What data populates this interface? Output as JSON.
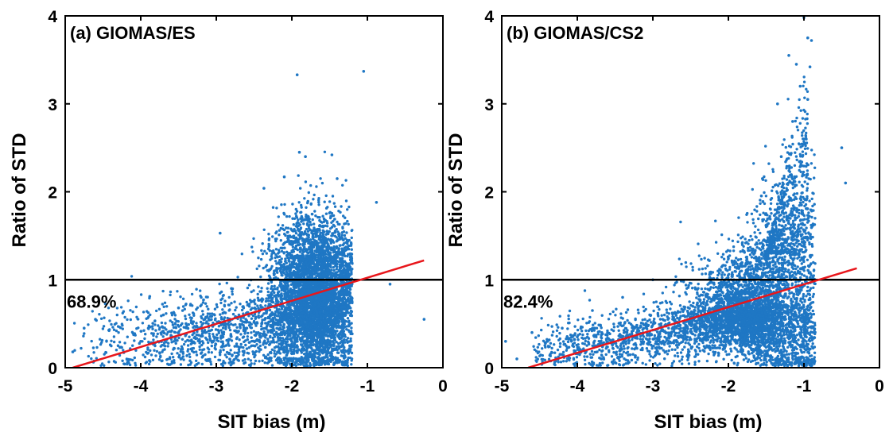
{
  "figure": {
    "colors": {
      "points": "#1f77c4",
      "fit_line": "#e8161b",
      "ref_line": "#000000",
      "axes": "#000000"
    }
  },
  "chart_data": [
    {
      "type": "scatter",
      "title": "(a) GIOMAS/ES",
      "xlabel": "SIT bias (m)",
      "ylabel": "Ratio of STD",
      "xlim": [
        -5,
        0
      ],
      "ylim": [
        0,
        4
      ],
      "xticks": [
        -5,
        -4,
        -3,
        -2,
        -1,
        0
      ],
      "xtick_labels": [
        "-5",
        "-4",
        "-3",
        "-2",
        "-1",
        "0"
      ],
      "yticks": [
        0,
        1,
        2,
        3,
        4
      ],
      "ytick_labels": [
        "0",
        "1",
        "2",
        "3",
        "4"
      ],
      "grid": false,
      "reference_line": {
        "y": 1
      },
      "fit_line": {
        "x": [
          -4.9,
          -0.25
        ],
        "y": [
          0.0,
          1.22
        ]
      },
      "percentage_label": "68.9%",
      "points": [
        [
          -1.93,
          3.33
        ],
        [
          -1.05,
          3.37
        ],
        [
          -1.9,
          2.45
        ],
        [
          -1.82,
          2.4
        ],
        [
          -1.47,
          2.42
        ],
        [
          -2.1,
          2.17
        ],
        [
          -2.37,
          2.04
        ],
        [
          -1.4,
          2.15
        ],
        [
          -2.95,
          1.53
        ],
        [
          -0.88,
          1.88
        ],
        [
          -0.7,
          0.95
        ],
        [
          -0.25,
          0.55
        ],
        [
          -4.9,
          0.18
        ],
        [
          -4.75,
          0.45
        ],
        [
          -4.6,
          0.55
        ],
        [
          -3.7,
          0.6
        ],
        [
          -3.5,
          0.68
        ],
        [
          -3.2,
          0.8
        ],
        [
          -2.8,
          0.9
        ],
        [
          -4.3,
          0.25
        ],
        [
          -4.0,
          0.3
        ],
        [
          -3.9,
          0.45
        ],
        [
          -3.6,
          0.35
        ],
        [
          -3.4,
          0.5
        ],
        [
          -3.1,
          0.42
        ],
        [
          -2.9,
          0.55
        ],
        [
          -2.7,
          0.6
        ],
        [
          -2.6,
          0.45
        ],
        [
          -2.5,
          0.75
        ],
        [
          -2.4,
          0.5
        ]
      ]
    },
    {
      "type": "scatter",
      "title": "(b) GIOMAS/CS2",
      "xlabel": "SIT bias (m)",
      "ylabel": "Ratio of STD",
      "xlim": [
        -5,
        0
      ],
      "ylim": [
        0,
        4
      ],
      "xticks": [
        -5,
        -4,
        -3,
        -2,
        -1,
        0
      ],
      "xtick_labels": [
        "-5",
        "-4",
        "-3",
        "-2",
        "-1",
        "0"
      ],
      "yticks": [
        0,
        1,
        2,
        3,
        4
      ],
      "ytick_labels": [
        "0",
        "1",
        "2",
        "3",
        "4"
      ],
      "grid": false,
      "reference_line": {
        "y": 1
      },
      "fit_line": {
        "x": [
          -4.65,
          -0.3
        ],
        "y": [
          0.0,
          1.13
        ]
      },
      "percentage_label": "82.4%",
      "points": [
        [
          -1.0,
          3.98
        ],
        [
          -0.95,
          3.75
        ],
        [
          -0.9,
          3.72
        ],
        [
          -1.2,
          3.55
        ],
        [
          -1.1,
          3.45
        ],
        [
          -0.92,
          3.42
        ],
        [
          -1.05,
          3.2
        ],
        [
          -0.95,
          3.05
        ],
        [
          -1.35,
          3.0
        ],
        [
          -1.15,
          2.8
        ],
        [
          -0.5,
          2.5
        ],
        [
          -0.45,
          2.1
        ],
        [
          -1.55,
          2.15
        ],
        [
          -1.3,
          2.4
        ],
        [
          -1.0,
          2.6
        ],
        [
          -3.0,
          1.0
        ],
        [
          -3.4,
          0.8
        ],
        [
          -3.8,
          0.65
        ],
        [
          -4.2,
          0.45
        ],
        [
          -4.6,
          0.4
        ],
        [
          -4.95,
          0.3
        ],
        [
          -4.8,
          0.1
        ],
        [
          -4.4,
          0.3
        ],
        [
          -4.0,
          0.35
        ],
        [
          -3.6,
          0.4
        ],
        [
          -3.2,
          0.45
        ],
        [
          -2.8,
          0.55
        ],
        [
          -2.6,
          0.65
        ],
        [
          -2.4,
          0.7
        ],
        [
          -2.2,
          0.8
        ]
      ]
    }
  ]
}
